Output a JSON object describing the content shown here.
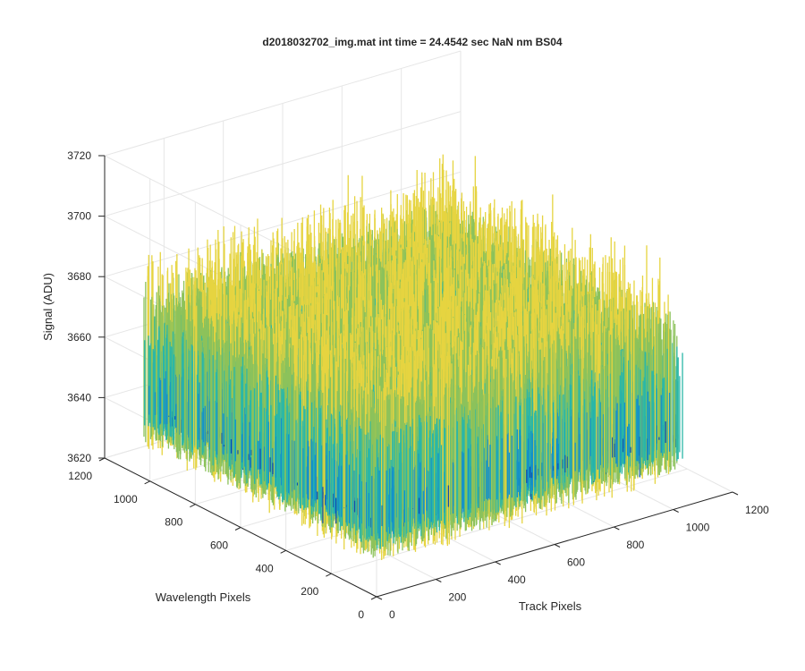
{
  "chart_data": {
    "type": "surface",
    "title": "d2018032702_img.mat int time = 24.4542 sec  NaN nm BS04",
    "xlabel": "Track Pixels",
    "ylabel": "Wavelength Pixels",
    "zlabel": "Signal (ADU)",
    "xlim": [
      0,
      1200
    ],
    "ylim": [
      0,
      1200
    ],
    "zlim": [
      3620,
      3720
    ],
    "x_ticks": [
      "0",
      "200",
      "400",
      "600",
      "800",
      "1000",
      "1200"
    ],
    "y_ticks": [
      "0",
      "200",
      "400",
      "600",
      "800",
      "1000",
      "1200"
    ],
    "z_ticks": [
      "3620",
      "3640",
      "3660",
      "3680",
      "3700",
      "3720"
    ],
    "surface_extent": {
      "x": [
        1,
        1024
      ],
      "y": [
        1,
        1024
      ]
    },
    "signal_mean": 3655,
    "signal_noise_range": [
      3630,
      3705
    ],
    "grid": true,
    "colormap": "parula",
    "colors": {
      "low": "#0f4fae",
      "mid_low": "#1591c9",
      "mid": "#2ab7a8",
      "mid_high": "#8cc25b",
      "high": "#e6d440",
      "grid": "#e6e6e6",
      "axis": "#262626"
    }
  }
}
